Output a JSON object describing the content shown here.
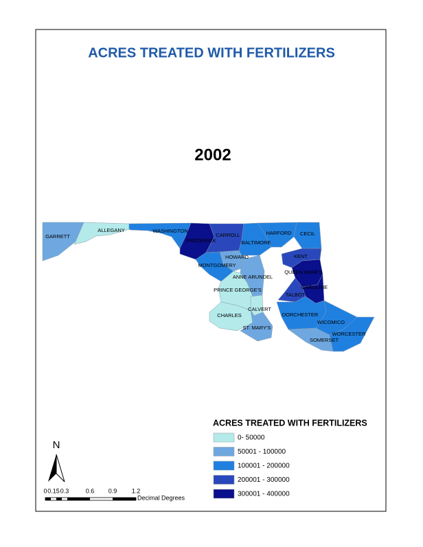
{
  "title": "ACRES TREATED WITH FERTILIZERS",
  "year": "2002",
  "counties": [
    {
      "name": "GARRETT",
      "color": "#6fa8e0"
    },
    {
      "name": "ALLEGANY",
      "color": "#b4eaea"
    },
    {
      "name": "WASHINGTON",
      "color": "#2080e0"
    },
    {
      "name": "FREDERICK",
      "color": "#0a0f8c"
    },
    {
      "name": "CARROLL",
      "color": "#2a48bc"
    },
    {
      "name": "BALTIMORE",
      "color": "#2080e0"
    },
    {
      "name": "HARFORD",
      "color": "#2080e0"
    },
    {
      "name": "CECIL",
      "color": "#2080e0"
    },
    {
      "name": "HOWARD",
      "color": "#6fa8e0"
    },
    {
      "name": "MONTGOMERY",
      "color": "#2080e0"
    },
    {
      "name": "ANNE ARUNDEL",
      "color": "#6fa8e0"
    },
    {
      "name": "PRINCE GEORGE'S",
      "color": "#b4eaea"
    },
    {
      "name": "CHARLES",
      "color": "#b4eaea"
    },
    {
      "name": "CALVERT",
      "color": "#b4eaea"
    },
    {
      "name": "ST. MARY'S",
      "color": "#6fa8e0"
    },
    {
      "name": "KENT",
      "color": "#2a48bc"
    },
    {
      "name": "QUEEN ANNE'S",
      "color": "#0a0f8c"
    },
    {
      "name": "CAROLINE",
      "color": "#0a0f8c"
    },
    {
      "name": "TALBOT",
      "color": "#2a48bc"
    },
    {
      "name": "DORCHESTER",
      "color": "#2080e0"
    },
    {
      "name": "WICOMICO",
      "color": "#2080e0"
    },
    {
      "name": "WORCESTER",
      "color": "#2080e0"
    },
    {
      "name": "SOMERSET",
      "color": "#6fa8e0"
    }
  ],
  "legend": {
    "title": "ACRES TREATED WITH FERTILIZERS",
    "items": [
      {
        "label": "0- 50000",
        "color": "#b4eaea"
      },
      {
        "label": "50001 - 100000",
        "color": "#6fa8e0"
      },
      {
        "label": "100001 - 200000",
        "color": "#2080e0"
      },
      {
        "label": "200001 - 300000",
        "color": "#2a48bc"
      },
      {
        "label": "300001 - 400000",
        "color": "#0a0f8c"
      }
    ]
  },
  "north": "N",
  "scale": {
    "labels": [
      "0",
      "0.15",
      "0.3",
      "0.6",
      "0.9",
      "1.2"
    ],
    "unit": "Decimal Degrees"
  }
}
